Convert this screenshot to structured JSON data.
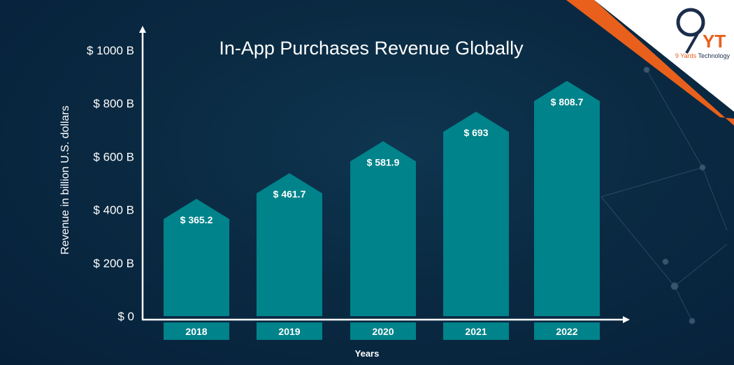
{
  "chart_data": {
    "type": "bar",
    "title": "In-App Purchases Revenue Globally",
    "xlabel": "Years",
    "ylabel": "Revenue in billion U.S. dollars",
    "categories": [
      "2018",
      "2019",
      "2020",
      "2021",
      "2022"
    ],
    "values": [
      365.2,
      461.7,
      581.9,
      693,
      808.7
    ],
    "data_labels": [
      "$ 365.2",
      "$ 461.7",
      "$ 581.9",
      "$ 693",
      "$ 808.7"
    ],
    "yticks": [
      0,
      200,
      400,
      600,
      800,
      1000
    ],
    "ytick_labels": [
      "$ 0",
      "$ 200 B",
      "$ 400 B",
      "$ 600 B",
      "$ 800 B",
      "$ 1000 B"
    ],
    "ylim": [
      0,
      1000
    ],
    "grid": false,
    "colors": {
      "bar": "#00838a",
      "axis": "#ffffff",
      "background": "#0a2a42",
      "accent": "#e8601c"
    }
  },
  "logo": {
    "mark": "9YT",
    "brand_first": "9 Yards",
    "brand_second": "Technology"
  }
}
